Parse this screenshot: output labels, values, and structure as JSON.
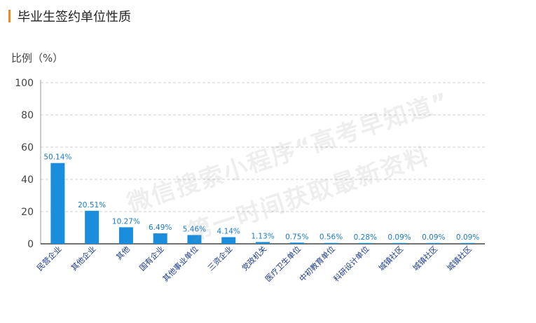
{
  "page": {
    "title": "毕业生签约单位性质",
    "accent_color": "#f08a24"
  },
  "unit_label": "比例（%）",
  "watermark": {
    "line1": "微信搜索小程序“高考早知道”",
    "line2": "第一时间获取最新资料"
  },
  "chart_data": {
    "type": "bar",
    "title": "毕业生签约单位性质",
    "ylabel": "比例（%）",
    "xlabel": "",
    "ylim": [
      0,
      100
    ],
    "yticks": [
      0,
      20,
      40,
      60,
      80,
      100
    ],
    "grid": true,
    "bar_color": "#1a8ddc",
    "label_color": "#1a7ac8",
    "axis_label_color": "#1a3a8a",
    "categories": [
      "民营企业",
      "其他企业",
      "其他",
      "国有企业",
      "其他事业单位",
      "三资企业",
      "党政机关",
      "医疗卫生单位",
      "中初教育单位",
      "科研设计单位",
      "城镇社区",
      "城镇社区",
      "城镇社区"
    ],
    "values": [
      50.14,
      20.51,
      10.27,
      6.49,
      5.46,
      4.14,
      1.13,
      0.75,
      0.56,
      0.28,
      0.09,
      0.09,
      0.09
    ],
    "value_labels": [
      "50.14%",
      "20.51%",
      "10.27%",
      "6.49%",
      "5.46%",
      "4.14%",
      "1.13%",
      "0.75%",
      "0.56%",
      "0.28%",
      "0.09%",
      "0.09%",
      "0.09%"
    ]
  }
}
